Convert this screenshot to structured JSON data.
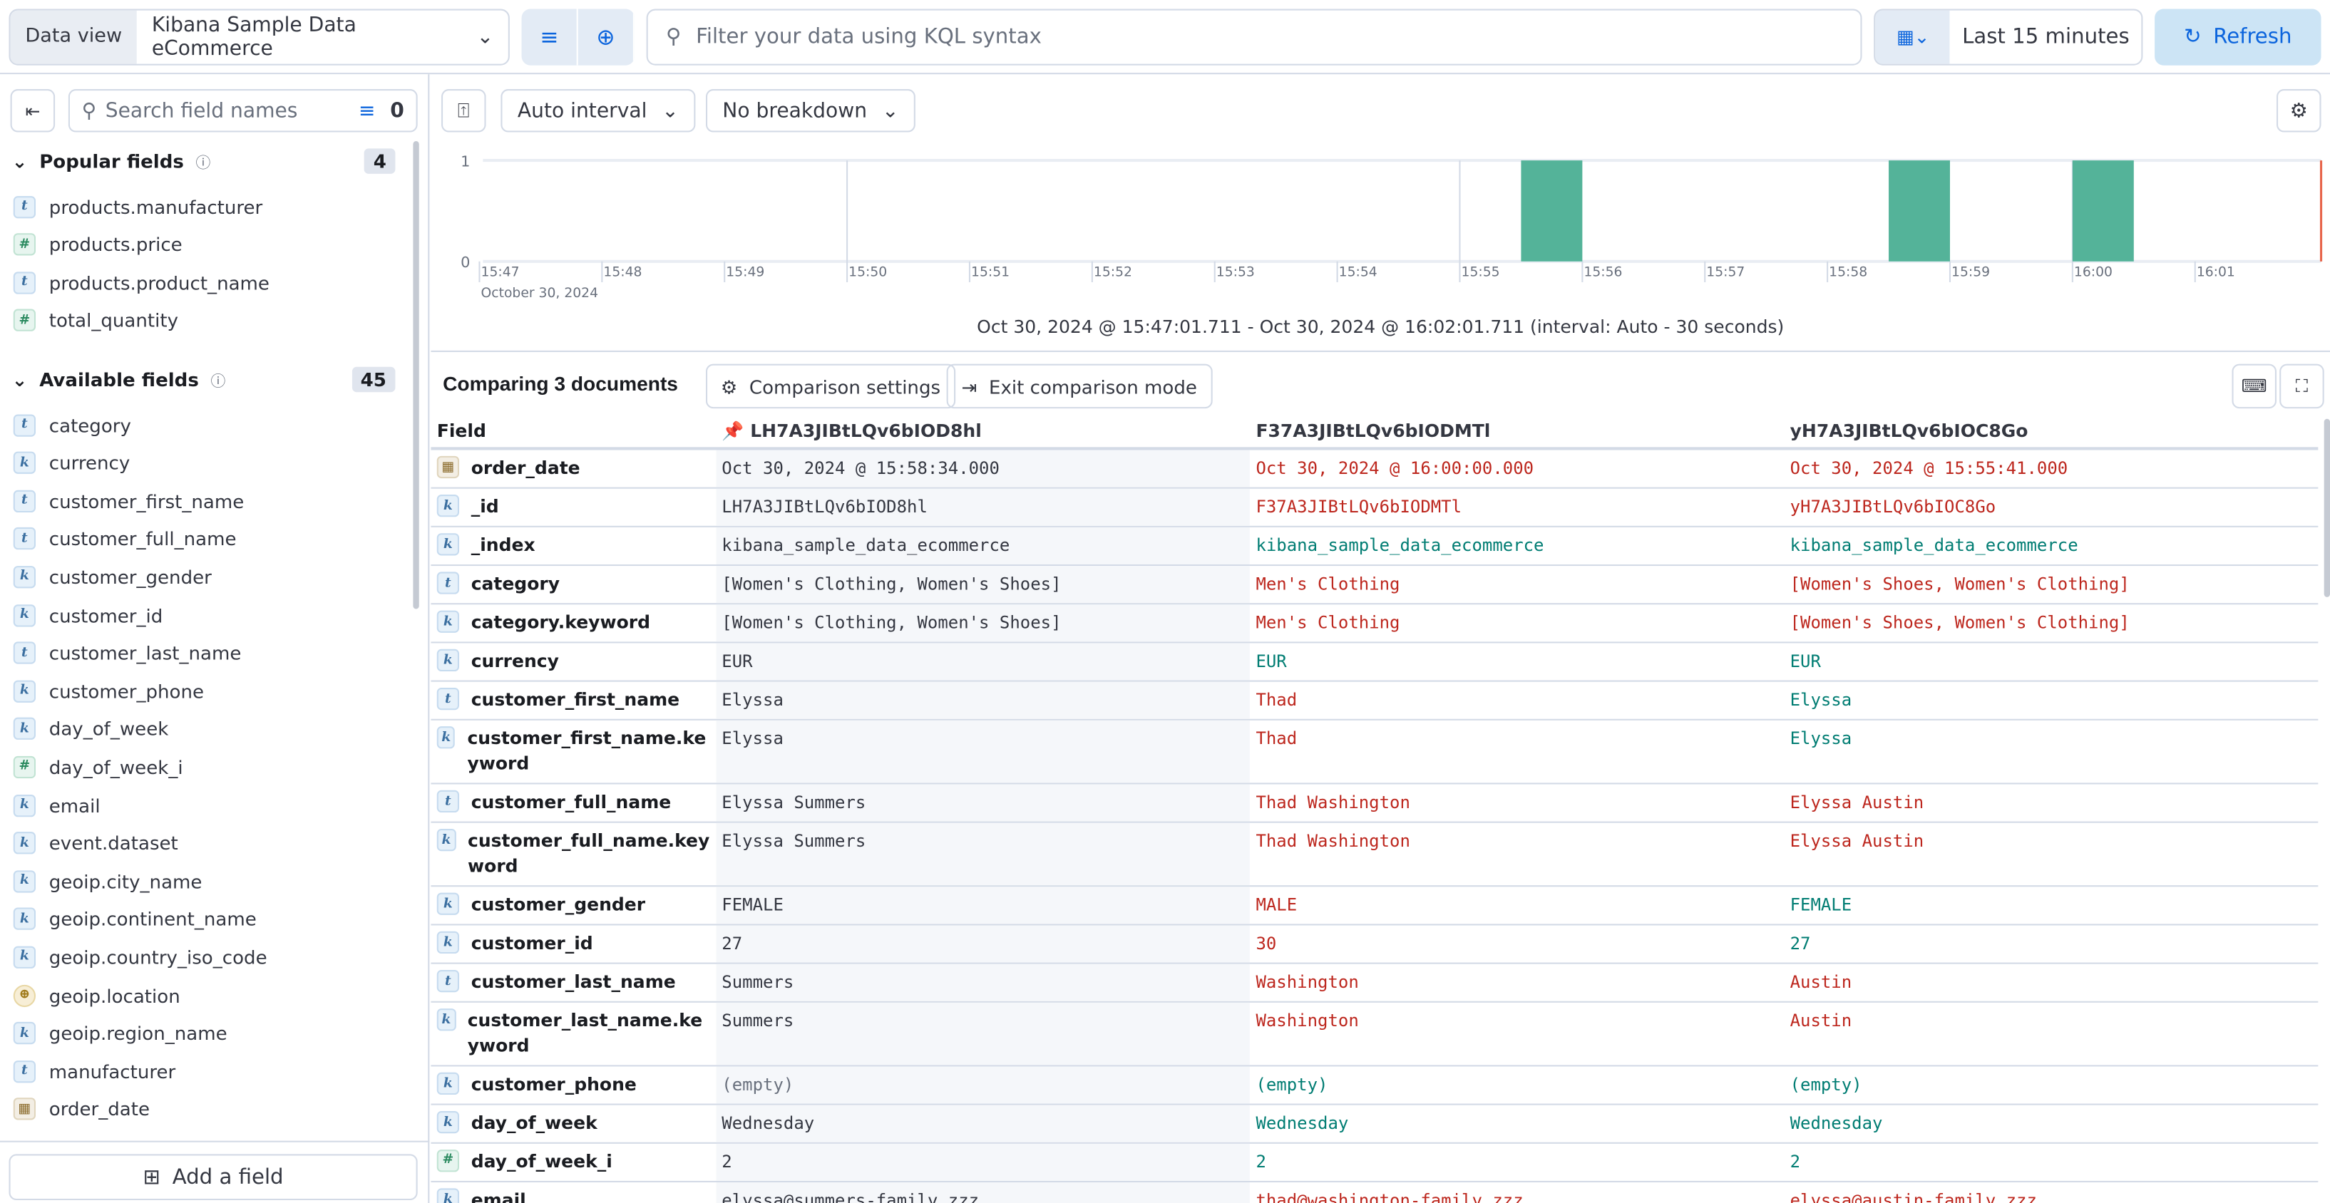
{
  "topbar": {
    "data_view_label": "Data view",
    "data_view": "Kibana Sample Data eCommerce",
    "kql_placeholder": "Filter your data using KQL syntax",
    "time_range": "Last 15 minutes",
    "refresh": "Refresh"
  },
  "sidebar": {
    "search_placeholder": "Search field names",
    "filter_count": "0",
    "popular": {
      "title": "Popular fields",
      "count": "4",
      "fields": [
        {
          "type": "t",
          "name": "products.manufacturer"
        },
        {
          "type": "#",
          "name": "products.price"
        },
        {
          "type": "t",
          "name": "products.product_name"
        },
        {
          "type": "#",
          "name": "total_quantity"
        }
      ]
    },
    "available": {
      "title": "Available fields",
      "count": "45",
      "fields": [
        {
          "type": "t",
          "name": "category"
        },
        {
          "type": "k",
          "name": "currency"
        },
        {
          "type": "t",
          "name": "customer_first_name"
        },
        {
          "type": "t",
          "name": "customer_full_name"
        },
        {
          "type": "k",
          "name": "customer_gender"
        },
        {
          "type": "k",
          "name": "customer_id"
        },
        {
          "type": "t",
          "name": "customer_last_name"
        },
        {
          "type": "k",
          "name": "customer_phone"
        },
        {
          "type": "k",
          "name": "day_of_week"
        },
        {
          "type": "#",
          "name": "day_of_week_i"
        },
        {
          "type": "k",
          "name": "email"
        },
        {
          "type": "k",
          "name": "event.dataset"
        },
        {
          "type": "k",
          "name": "geoip.city_name"
        },
        {
          "type": "k",
          "name": "geoip.continent_name"
        },
        {
          "type": "k",
          "name": "geoip.country_iso_code"
        },
        {
          "type": "geo",
          "name": "geoip.location"
        },
        {
          "type": "k",
          "name": "geoip.region_name"
        },
        {
          "type": "t",
          "name": "manufacturer"
        },
        {
          "type": "date",
          "name": "order_date"
        }
      ]
    },
    "add_field": "Add a field"
  },
  "toolbar": {
    "interval": "Auto interval",
    "breakdown": "No breakdown"
  },
  "chart_data": {
    "type": "bar",
    "x_start": "15:47:01.711",
    "x_end": "16:02:01.711",
    "interval": "30 seconds",
    "x_ticks": [
      "15:47",
      "15:48",
      "15:49",
      "15:50",
      "15:51",
      "15:52",
      "15:53",
      "15:54",
      "15:55",
      "15:56",
      "15:57",
      "15:58",
      "15:59",
      "16:00",
      "16:01"
    ],
    "x_sublabel": "October 30, 2024",
    "y_ticks": [
      "0",
      "1"
    ],
    "ylim": [
      0,
      1
    ],
    "bars": [
      {
        "start": "15:55:30",
        "end": "15:56:00",
        "value": 1
      },
      {
        "start": "15:58:30",
        "end": "15:59:00",
        "value": 1
      },
      {
        "start": "16:00:00",
        "end": "16:00:30",
        "value": 1
      }
    ],
    "color": "#54b399"
  },
  "summary": "Oct 30, 2024 @ 15:47:01.711 - Oct 30, 2024 @ 16:02:01.711 (interval: Auto - 30 seconds)",
  "comparison": {
    "title": "Comparing 3 documents",
    "settings": "Comparison settings",
    "exit": "Exit comparison mode",
    "headers": [
      "Field",
      "LH7A3JIBtLQv6bIOD8hl",
      "F37A3JIBtLQv6bIODMTl",
      "yH7A3JIBtLQv6bIOC8Go"
    ],
    "rows": [
      {
        "type": "date",
        "field": "order_date",
        "v": [
          "Oct 30, 2024 @ 15:58:34.000",
          "Oct 30, 2024 @ 16:00:00.000",
          "Oct 30, 2024 @ 15:55:41.000"
        ],
        "s": [
          "",
          "diff",
          "diff"
        ]
      },
      {
        "type": "k",
        "field": "_id",
        "v": [
          "LH7A3JIBtLQv6bIOD8hl",
          "F37A3JIBtLQv6bIODMTl",
          "yH7A3JIBtLQv6bIOC8Go"
        ],
        "s": [
          "",
          "diff",
          "diff"
        ]
      },
      {
        "type": "k",
        "field": "_index",
        "v": [
          "kibana_sample_data_ecommerce",
          "kibana_sample_data_ecommerce",
          "kibana_sample_data_ecommerce"
        ],
        "s": [
          "",
          "same",
          "same"
        ]
      },
      {
        "type": "t",
        "field": "category",
        "v": [
          "[Women's Clothing, Women's Shoes]",
          "Men's Clothing",
          "[Women's Shoes, Women's Clothing]"
        ],
        "s": [
          "",
          "diff",
          "diff"
        ]
      },
      {
        "type": "k",
        "field": "category.keyword",
        "v": [
          "[Women's Clothing, Women's Shoes]",
          "Men's Clothing",
          "[Women's Shoes, Women's Clothing]"
        ],
        "s": [
          "",
          "diff",
          "diff"
        ]
      },
      {
        "type": "k",
        "field": "currency",
        "v": [
          "EUR",
          "EUR",
          "EUR"
        ],
        "s": [
          "",
          "same",
          "same"
        ]
      },
      {
        "type": "t",
        "field": "customer_first_name",
        "v": [
          "Elyssa",
          "Thad",
          "Elyssa"
        ],
        "s": [
          "",
          "diff",
          "same"
        ]
      },
      {
        "type": "k",
        "field": "customer_first_name.keyword",
        "v": [
          "Elyssa",
          "Thad",
          "Elyssa"
        ],
        "s": [
          "",
          "diff",
          "same"
        ]
      },
      {
        "type": "t",
        "field": "customer_full_name",
        "v": [
          "Elyssa Summers",
          "Thad Washington",
          "Elyssa Austin"
        ],
        "s": [
          "",
          "diff",
          "diff"
        ]
      },
      {
        "type": "k",
        "field": "customer_full_name.keyword",
        "v": [
          "Elyssa Summers",
          "Thad Washington",
          "Elyssa Austin"
        ],
        "s": [
          "",
          "diff",
          "diff"
        ]
      },
      {
        "type": "k",
        "field": "customer_gender",
        "v": [
          "FEMALE",
          "MALE",
          "FEMALE"
        ],
        "s": [
          "",
          "diff",
          "same"
        ]
      },
      {
        "type": "k",
        "field": "customer_id",
        "v": [
          "27",
          "30",
          "27"
        ],
        "s": [
          "",
          "diff",
          "same"
        ]
      },
      {
        "type": "t",
        "field": "customer_last_name",
        "v": [
          "Summers",
          "Washington",
          "Austin"
        ],
        "s": [
          "",
          "diff",
          "diff"
        ]
      },
      {
        "type": "k",
        "field": "customer_last_name.keyword",
        "v": [
          "Summers",
          "Washington",
          "Austin"
        ],
        "s": [
          "",
          "diff",
          "diff"
        ]
      },
      {
        "type": "k",
        "field": "customer_phone",
        "v": [
          "(empty)",
          "(empty)",
          "(empty)"
        ],
        "s": [
          "empty",
          "same",
          "same"
        ]
      },
      {
        "type": "k",
        "field": "day_of_week",
        "v": [
          "Wednesday",
          "Wednesday",
          "Wednesday"
        ],
        "s": [
          "",
          "same",
          "same"
        ]
      },
      {
        "type": "#",
        "field": "day_of_week_i",
        "v": [
          "2",
          "2",
          "2"
        ],
        "s": [
          "",
          "same",
          "same"
        ]
      },
      {
        "type": "k",
        "field": "email",
        "v": [
          "elyssa@summers-family.zzz",
          "thad@washington-family.zzz",
          "elyssa@austin-family.zzz"
        ],
        "s": [
          "",
          "diff",
          "diff"
        ]
      }
    ]
  }
}
